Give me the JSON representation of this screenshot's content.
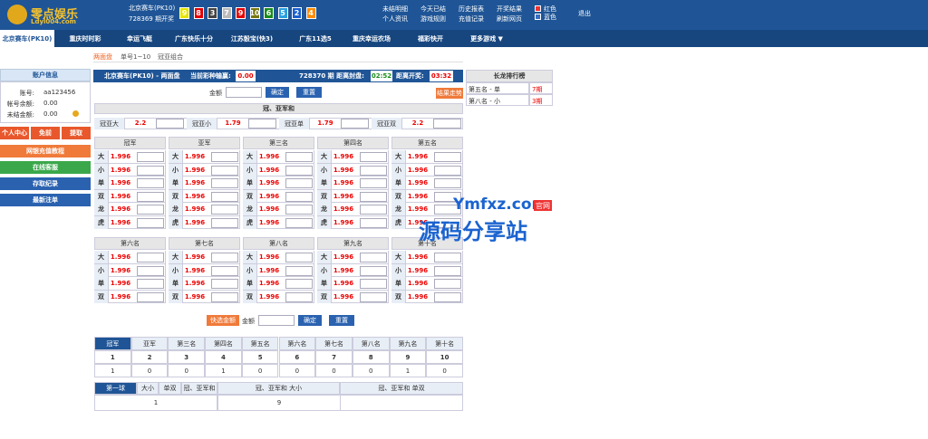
{
  "header": {
    "logo_title": "零点娱乐",
    "logo_sub": "Ldyl004.com",
    "game": "北京赛车(PK10)",
    "draw_label": "728369 期开奖",
    "balls": [
      9,
      8,
      3,
      7,
      9,
      10,
      6,
      5,
      2,
      4
    ],
    "links": [
      "未结明细",
      "今天已结",
      "历史报表",
      "开奖结果",
      "个人资讯",
      "游戏规则",
      "充值记录",
      "刷新网页"
    ],
    "colors": [
      "红色",
      "蓝色"
    ],
    "logout": "退出"
  },
  "nav": {
    "items": [
      "北京赛车(PK10)",
      "重庆时时彩",
      "幸运飞艇",
      "广东快乐十分",
      "江苏骰宝(快3)",
      "广东11选5",
      "重庆幸运农场",
      "福彩快开",
      "更多游戏 ▼"
    ],
    "sub": [
      "两面盘",
      "单号1~10",
      "冠亚组合"
    ]
  },
  "sidebar": {
    "title": "账户信息",
    "fields": [
      {
        "label": "账号:",
        "value": "aa123456"
      },
      {
        "label": "帐号余额:",
        "value": "0.00"
      },
      {
        "label": "未结金额:",
        "value": "0.00"
      }
    ],
    "buttons": [
      "个人中心",
      "免前",
      "提取"
    ],
    "menu": [
      "网银充值教程",
      "在线客服",
      "存取纪录",
      "最新注单"
    ]
  },
  "main": {
    "game_title": "北京赛车(PK10) - 两面盘",
    "win_label": "当前彩种输赢:",
    "win_value": "0.00",
    "period": "728370 期 距离封盘:",
    "close_time": "02:52",
    "draw_label": "距离开奖:",
    "draw_time": "03:32",
    "amount_label": "金额",
    "confirm": "确定",
    "reset": "重置",
    "trend": "结果走势",
    "sum_title": "冠、亚军和",
    "sum_bets": [
      {
        "label": "冠亚大",
        "odds": 2.2
      },
      {
        "label": "冠亚小",
        "odds": 1.79
      },
      {
        "label": "冠亚单",
        "odds": 1.79
      },
      {
        "label": "冠亚双",
        "odds": 2.2
      }
    ],
    "groups": [
      {
        "columns": [
          {
            "name": "冠军",
            "rows": [
              {
                "label": "大",
                "odds": 1.996
              },
              {
                "label": "小",
                "odds": 1.996
              },
              {
                "label": "单",
                "odds": 1.996
              },
              {
                "label": "双",
                "odds": 1.996
              },
              {
                "label": "龙",
                "odds": 1.996
              },
              {
                "label": "虎",
                "odds": 1.996
              }
            ]
          },
          {
            "name": "亚军",
            "rows": [
              {
                "label": "大",
                "odds": 1.996
              },
              {
                "label": "小",
                "odds": 1.996
              },
              {
                "label": "单",
                "odds": 1.996
              },
              {
                "label": "双",
                "odds": 1.996
              },
              {
                "label": "龙",
                "odds": 1.996
              },
              {
                "label": "虎",
                "odds": 1.996
              }
            ]
          },
          {
            "name": "第三名",
            "rows": [
              {
                "label": "大",
                "odds": 1.996
              },
              {
                "label": "小",
                "odds": 1.996
              },
              {
                "label": "单",
                "odds": 1.996
              },
              {
                "label": "双",
                "odds": 1.996
              },
              {
                "label": "龙",
                "odds": 1.996
              },
              {
                "label": "虎",
                "odds": 1.996
              }
            ]
          },
          {
            "name": "第四名",
            "rows": [
              {
                "label": "大",
                "odds": 1.996
              },
              {
                "label": "小",
                "odds": 1.996
              },
              {
                "label": "单",
                "odds": 1.996
              },
              {
                "label": "双",
                "odds": 1.996
              },
              {
                "label": "龙",
                "odds": 1.996
              },
              {
                "label": "虎",
                "odds": 1.996
              }
            ]
          },
          {
            "name": "第五名",
            "rows": [
              {
                "label": "大",
                "odds": 1.996
              },
              {
                "label": "小",
                "odds": 1.996
              },
              {
                "label": "单",
                "odds": 1.996
              },
              {
                "label": "双",
                "odds": 1.996
              },
              {
                "label": "龙",
                "odds": 1.996
              },
              {
                "label": "虎",
                "odds": 1.996
              }
            ]
          }
        ]
      },
      {
        "columns": [
          {
            "name": "第六名",
            "rows": [
              {
                "label": "大",
                "odds": 1.996
              },
              {
                "label": "小",
                "odds": 1.996
              },
              {
                "label": "单",
                "odds": 1.996
              },
              {
                "label": "双",
                "odds": 1.996
              }
            ]
          },
          {
            "name": "第七名",
            "rows": [
              {
                "label": "大",
                "odds": 1.996
              },
              {
                "label": "小",
                "odds": 1.996
              },
              {
                "label": "单",
                "odds": 1.996
              },
              {
                "label": "双",
                "odds": 1.996
              }
            ]
          },
          {
            "name": "第八名",
            "rows": [
              {
                "label": "大",
                "odds": 1.996
              },
              {
                "label": "小",
                "odds": 1.996
              },
              {
                "label": "单",
                "odds": 1.996
              },
              {
                "label": "双",
                "odds": 1.996
              }
            ]
          },
          {
            "name": "第九名",
            "rows": [
              {
                "label": "大",
                "odds": 1.996
              },
              {
                "label": "小",
                "odds": 1.996
              },
              {
                "label": "单",
                "odds": 1.996
              },
              {
                "label": "双",
                "odds": 1.996
              }
            ]
          },
          {
            "name": "第十名",
            "rows": [
              {
                "label": "大",
                "odds": 1.996
              },
              {
                "label": "小",
                "odds": 1.996
              },
              {
                "label": "单",
                "odds": 1.996
              },
              {
                "label": "双",
                "odds": 1.996
              }
            ]
          }
        ]
      }
    ],
    "quick": "快选金额"
  },
  "results": {
    "tabs": [
      "冠军",
      "亚军",
      "第三名",
      "第四名",
      "第五名",
      "第六名",
      "第七名",
      "第八名",
      "第九名",
      "第十名"
    ],
    "numbers": [
      1,
      2,
      3,
      4,
      5,
      6,
      7,
      8,
      9,
      10
    ],
    "counts": [
      1,
      0,
      0,
      1,
      0,
      0,
      0,
      0,
      1,
      0
    ]
  },
  "results2": {
    "headers": [
      "第一球",
      "大小",
      "单双",
      "冠、亚军和",
      "冠、亚军和 大小",
      "冠、亚军和 单双"
    ],
    "values": [
      1,
      9
    ]
  },
  "ranking": {
    "title": "长龙排行榜",
    "rows": [
      {
        "name": "第五名 - 单",
        "count": "7期"
      },
      {
        "name": "第八名 - 小",
        "count": "3期"
      }
    ]
  },
  "watermark": {
    "site": "Ymfxz.com",
    "tag": "官网",
    "name": "源码分享站"
  }
}
